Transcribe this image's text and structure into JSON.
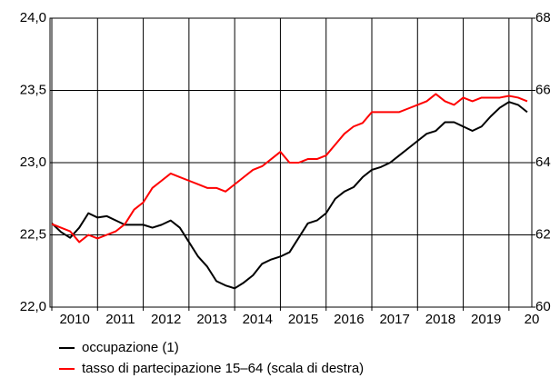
{
  "chart_data": {
    "type": "line",
    "x": [
      2010.0,
      2010.2,
      2010.4,
      2010.6,
      2010.8,
      2011.0,
      2011.2,
      2011.4,
      2011.6,
      2011.8,
      2012.0,
      2012.2,
      2012.4,
      2012.6,
      2012.8,
      2013.0,
      2013.2,
      2013.4,
      2013.6,
      2013.8,
      2014.0,
      2014.2,
      2014.4,
      2014.6,
      2014.8,
      2015.0,
      2015.2,
      2015.4,
      2015.6,
      2015.8,
      2016.0,
      2016.2,
      2016.4,
      2016.6,
      2016.8,
      2017.0,
      2017.2,
      2017.4,
      2017.6,
      2017.8,
      2018.0,
      2018.2,
      2018.4,
      2018.6,
      2018.8,
      2019.0,
      2019.2,
      2019.4,
      2019.6,
      2019.8,
      2020.0,
      2020.2,
      2020.4
    ],
    "series": [
      {
        "name": "occupazione (1)",
        "color": "#000000",
        "values": [
          22.58,
          22.52,
          22.48,
          22.55,
          22.65,
          22.62,
          22.63,
          22.6,
          22.57,
          22.57,
          22.57,
          22.55,
          22.57,
          22.6,
          22.55,
          22.45,
          22.35,
          22.28,
          22.18,
          22.15,
          22.13,
          22.17,
          22.22,
          22.3,
          22.33,
          22.35,
          22.38,
          22.48,
          22.58,
          22.6,
          22.65,
          22.75,
          22.8,
          22.83,
          22.9,
          22.95,
          22.97,
          23.0,
          23.05,
          23.1,
          23.15,
          23.2,
          23.22,
          23.28,
          23.28,
          23.25,
          23.22,
          23.25,
          23.32,
          23.38,
          23.42,
          23.4,
          23.35
        ]
      },
      {
        "name": "tasso di partecipazione 15–64 (scala di destra)",
        "color": "#ff0000",
        "axis": "y2",
        "values": [
          62.3,
          62.2,
          62.1,
          61.8,
          62.0,
          61.9,
          62.0,
          62.1,
          62.3,
          62.7,
          62.9,
          63.3,
          63.5,
          63.7,
          63.6,
          63.5,
          63.4,
          63.3,
          63.3,
          63.2,
          63.4,
          63.6,
          63.8,
          63.9,
          64.1,
          64.3,
          64.0,
          64.0,
          64.1,
          64.1,
          64.2,
          64.5,
          64.8,
          65.0,
          65.1,
          65.4,
          65.4,
          65.4,
          65.4,
          65.5,
          65.6,
          65.7,
          65.9,
          65.7,
          65.6,
          65.8,
          65.7,
          65.8,
          65.8,
          65.8,
          65.85,
          65.8,
          65.7
        ]
      }
    ],
    "xlim": [
      2009.96,
      2020.5
    ],
    "xticks": [
      2010,
      2011,
      2012,
      2013,
      2014,
      2015,
      2016,
      2017,
      2018,
      2019,
      {
        "value": 2020,
        "label": "20"
      }
    ],
    "ylim": [
      22,
      24
    ],
    "yticks": [
      {
        "value": 22,
        "label": "22,0"
      },
      {
        "value": 22.5,
        "label": "22,5"
      },
      {
        "value": 23,
        "label": "23,0"
      },
      {
        "value": 23.5,
        "label": "23,5"
      },
      {
        "value": 24,
        "label": "24,0"
      }
    ],
    "y2lim": [
      60,
      68
    ],
    "y2ticks": [
      60,
      62,
      64,
      66,
      68
    ],
    "grid": true
  }
}
